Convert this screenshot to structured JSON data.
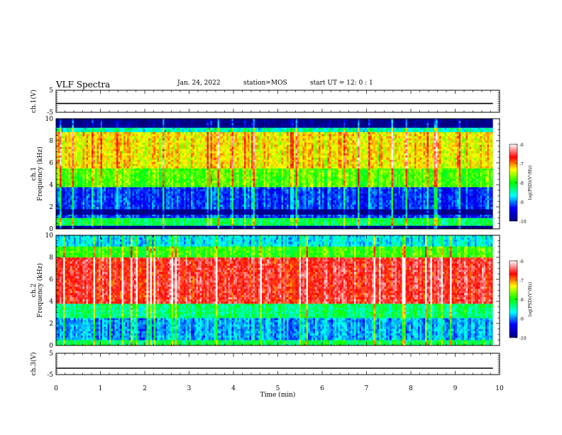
{
  "header": {
    "title": "VLF Spectra",
    "date": "Jan. 24, 2022",
    "station": "station=MOS",
    "start": "start UT =  12: 0  : 1"
  },
  "chart_data": [
    {
      "type": "line",
      "panel": "ch1_voltage",
      "ylabel": "ch.1(V)",
      "ylim": [
        -5,
        5
      ],
      "yticks": [
        "5",
        "-5"
      ],
      "xlim": [
        0,
        10
      ],
      "series": [
        {
          "values": [
            -1,
            -1
          ]
        }
      ]
    },
    {
      "type": "heatmap",
      "panel": "ch1_spectrogram",
      "ylabel": [
        "ch.1",
        "Frequency (kHz)"
      ],
      "ylim": [
        0,
        10
      ],
      "yticks": [
        "0",
        "2",
        "4",
        "6",
        "8",
        "10"
      ],
      "xlim": [
        0,
        10
      ],
      "data_until_min": 9.85,
      "bands_khz_log_psd": [
        {
          "from": 0,
          "to": 0.3,
          "level": -10
        },
        {
          "from": 0.3,
          "to": 1,
          "level": -8.2
        },
        {
          "from": 1,
          "to": 1.3,
          "level": -9.2
        },
        {
          "from": 1.3,
          "to": 1.8,
          "level": -10
        },
        {
          "from": 1.8,
          "to": 3.8,
          "level": -9.2
        },
        {
          "from": 3.8,
          "to": 5.5,
          "level": -7.8
        },
        {
          "from": 5.5,
          "to": 8.8,
          "level": -7.3
        },
        {
          "from": 8.8,
          "to": 9.2,
          "level": -8.5
        },
        {
          "from": 9.2,
          "to": 10,
          "level": -10
        }
      ]
    },
    {
      "type": "heatmap",
      "panel": "ch2_spectrogram",
      "ylabel": [
        "ch.2",
        "Frequency (kHz)"
      ],
      "ylim": [
        0,
        10
      ],
      "yticks": [
        "0",
        "2",
        "4",
        "6",
        "8",
        "10"
      ],
      "xlim": [
        0,
        10
      ],
      "data_until_min": 9.85,
      "bands_khz_log_psd": [
        {
          "from": 0,
          "to": 0.5,
          "level": -8.2
        },
        {
          "from": 0.5,
          "to": 2.5,
          "level": -8.9
        },
        {
          "from": 2.5,
          "to": 3.8,
          "level": -8.3
        },
        {
          "from": 3.8,
          "to": 8.0,
          "level": -6.6
        },
        {
          "from": 8.0,
          "to": 9.0,
          "level": -7.9
        },
        {
          "from": 9.0,
          "to": 10,
          "level": -8.7
        }
      ]
    },
    {
      "type": "line",
      "panel": "ch3_voltage",
      "ylabel": "ch.3(V)",
      "ylim": [
        -5,
        5
      ],
      "yticks": [
        "5",
        "-5"
      ],
      "xlim": [
        0,
        10
      ],
      "series": [
        {
          "values": [
            -2,
            -2
          ]
        }
      ]
    }
  ],
  "xaxis": {
    "label": "Time (min)",
    "ticks": [
      "0",
      "1",
      "2",
      "3",
      "4",
      "5",
      "6",
      "7",
      "8",
      "9",
      "10"
    ]
  },
  "colorbar": {
    "label": "log(PSD)(V²/Hz)",
    "range": [
      -10,
      -6
    ],
    "ticks": [
      "-6",
      "-7",
      "-8",
      "-9",
      "-10"
    ],
    "colors": [
      "#000080",
      "#0000ff",
      "#00ffff",
      "#00ff00",
      "#ffff00",
      "#ff0000",
      "#ffffff"
    ]
  }
}
